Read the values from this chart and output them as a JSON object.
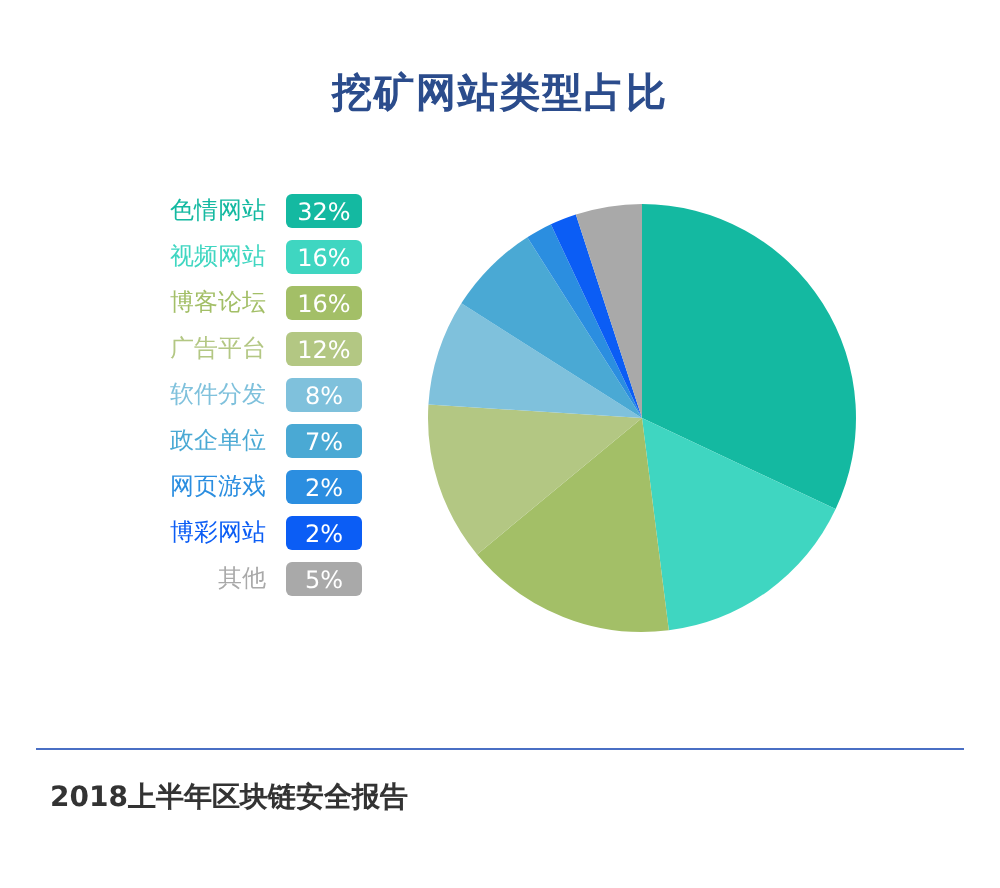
{
  "chart_data": {
    "type": "pie",
    "title": "挖矿网站类型占比",
    "categories": [
      "色情网站",
      "视频网站",
      "博客论坛",
      "广告平台",
      "软件分发",
      "政企单位",
      "网页游戏",
      "博彩网站",
      "其他"
    ],
    "values": [
      32,
      16,
      16,
      12,
      8,
      7,
      2,
      2,
      5
    ],
    "colors": [
      "#14b9a1",
      "#3fd6c1",
      "#a3bf67",
      "#b3c783",
      "#7fc1dc",
      "#4aa9d4",
      "#2b8ee0",
      "#0b5df5",
      "#a9a9a9"
    ],
    "value_labels": [
      "32%",
      "16%",
      "16%",
      "12%",
      "8%",
      "7%",
      "2%",
      "2%",
      "5%"
    ],
    "legend": "left",
    "annotations": [
      "2018上半年区块链安全报告"
    ]
  }
}
